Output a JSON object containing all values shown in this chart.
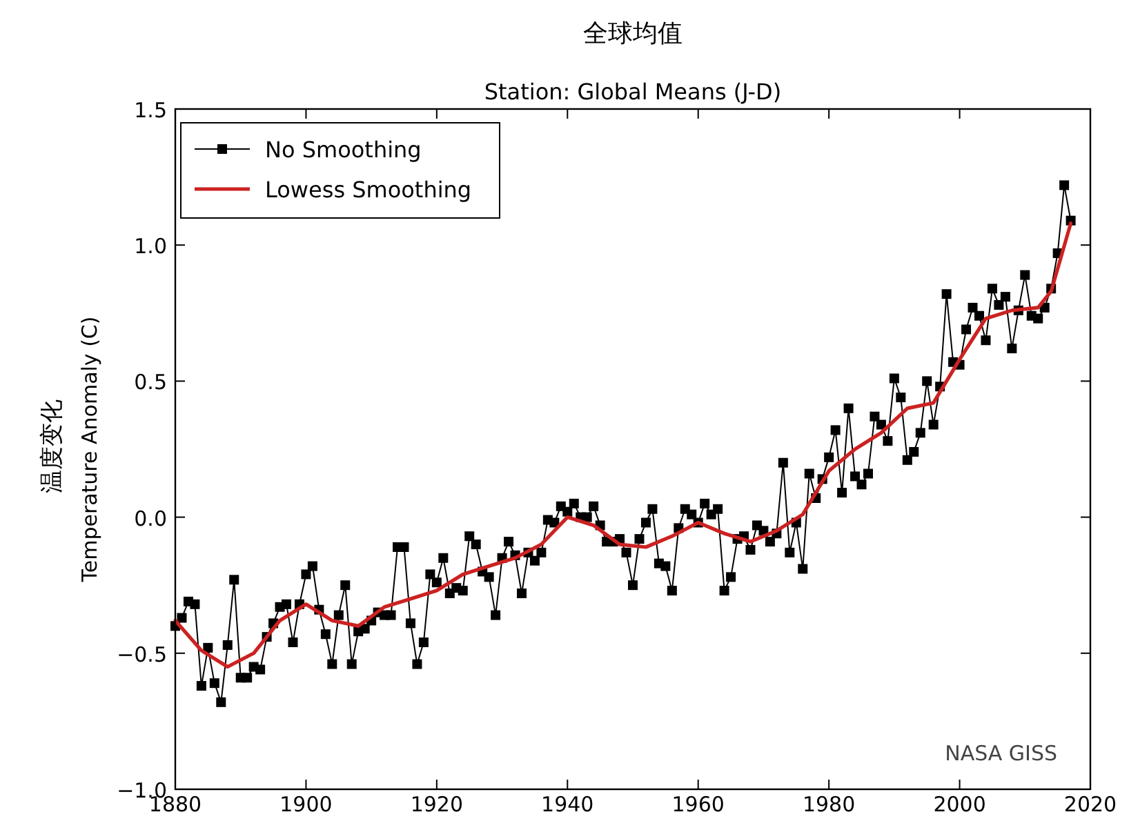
{
  "chart_data": {
    "type": "line",
    "title": "全球均值",
    "subtitle": "Station: Global Means (J-D)",
    "ylabel": "Temperature Anomaly (C)",
    "annotations": [
      "温度变化",
      "NASA GISS"
    ],
    "xlim": [
      1880,
      2020
    ],
    "xticks": [
      1880,
      1900,
      1920,
      1940,
      1960,
      1980,
      2000,
      2020
    ],
    "ylim": [
      -1.0,
      1.5
    ],
    "yticks": [
      {
        "value": -1.0,
        "label": "−1.0"
      },
      {
        "value": -0.5,
        "label": "−0.5"
      },
      {
        "value": 0.0,
        "label": "0.0"
      },
      0.5,
      {
        "value": 1.0,
        "label": "1.0"
      },
      1.5
    ],
    "grid": false,
    "legend": "top left",
    "series": [
      {
        "name": "No Smoothing",
        "color": "#000000",
        "marker": "square",
        "x": [
          1880,
          1881,
          1882,
          1883,
          1884,
          1885,
          1886,
          1887,
          1888,
          1889,
          1890,
          1891,
          1892,
          1893,
          1894,
          1895,
          1896,
          1897,
          1898,
          1899,
          1900,
          1901,
          1902,
          1903,
          1904,
          1905,
          1906,
          1907,
          1908,
          1909,
          1910,
          1911,
          1912,
          1913,
          1914,
          1915,
          1916,
          1917,
          1918,
          1919,
          1920,
          1921,
          1922,
          1923,
          1924,
          1925,
          1926,
          1927,
          1928,
          1929,
          1930,
          1931,
          1932,
          1933,
          1934,
          1935,
          1936,
          1937,
          1938,
          1939,
          1940,
          1941,
          1942,
          1943,
          1944,
          1945,
          1946,
          1947,
          1948,
          1949,
          1950,
          1951,
          1952,
          1953,
          1954,
          1955,
          1956,
          1957,
          1958,
          1959,
          1960,
          1961,
          1962,
          1963,
          1964,
          1965,
          1966,
          1967,
          1968,
          1969,
          1970,
          1971,
          1972,
          1973,
          1974,
          1975,
          1976,
          1977,
          1978,
          1979,
          1980,
          1981,
          1982,
          1983,
          1984,
          1985,
          1986,
          1987,
          1988,
          1989,
          1990,
          1991,
          1992,
          1993,
          1994,
          1995,
          1996,
          1997,
          1998,
          1999,
          2000,
          2001,
          2002,
          2003,
          2004,
          2005,
          2006,
          2007,
          2008,
          2009,
          2010,
          2011,
          2012,
          2013,
          2014,
          2015,
          2016,
          2017
        ],
        "values": [
          -0.4,
          -0.37,
          -0.31,
          -0.32,
          -0.62,
          -0.48,
          -0.61,
          -0.68,
          -0.47,
          -0.23,
          -0.59,
          -0.59,
          -0.55,
          -0.56,
          -0.44,
          -0.39,
          -0.33,
          -0.32,
          -0.46,
          -0.32,
          -0.21,
          -0.18,
          -0.34,
          -0.43,
          -0.54,
          -0.36,
          -0.25,
          -0.54,
          -0.42,
          -0.41,
          -0.38,
          -0.35,
          -0.36,
          -0.36,
          -0.11,
          -0.11,
          -0.39,
          -0.54,
          -0.46,
          -0.21,
          -0.24,
          -0.15,
          -0.28,
          -0.26,
          -0.27,
          -0.07,
          -0.1,
          -0.2,
          -0.22,
          -0.36,
          -0.15,
          -0.09,
          -0.14,
          -0.28,
          -0.13,
          -0.16,
          -0.13,
          -0.01,
          -0.02,
          0.04,
          0.02,
          0.05,
          0.0,
          0.0,
          0.04,
          -0.03,
          -0.09,
          -0.09,
          -0.08,
          -0.13,
          -0.25,
          -0.08,
          -0.02,
          0.03,
          -0.17,
          -0.18,
          -0.27,
          -0.04,
          0.03,
          0.01,
          -0.02,
          0.05,
          0.01,
          0.03,
          -0.27,
          -0.22,
          -0.08,
          -0.07,
          -0.12,
          -0.03,
          -0.05,
          -0.09,
          -0.06,
          0.2,
          -0.13,
          -0.02,
          -0.19,
          0.16,
          0.07,
          0.14,
          0.22,
          0.32,
          0.09,
          0.4,
          0.15,
          0.12,
          0.16,
          0.37,
          0.34,
          0.28,
          0.51,
          0.44,
          0.21,
          0.24,
          0.31,
          0.5,
          0.34,
          0.48,
          0.82,
          0.57,
          0.56,
          0.69,
          0.77,
          0.74,
          0.65,
          0.84,
          0.78,
          0.81,
          0.62,
          0.76,
          0.89,
          0.74,
          0.73,
          0.77,
          0.84,
          0.97,
          1.22,
          1.09
        ]
      },
      {
        "name": "Lowess Smoothing",
        "color": "#cc2222",
        "marker": "none",
        "x": [
          1880,
          1884,
          1888,
          1892,
          1896,
          1900,
          1904,
          1908,
          1912,
          1916,
          1920,
          1924,
          1928,
          1932,
          1936,
          1940,
          1944,
          1948,
          1952,
          1956,
          1960,
          1964,
          1968,
          1972,
          1976,
          1980,
          1984,
          1988,
          1992,
          1996,
          2000,
          2004,
          2008,
          2012,
          2014,
          2017
        ],
        "values": [
          -0.38,
          -0.49,
          -0.55,
          -0.5,
          -0.38,
          -0.32,
          -0.38,
          -0.4,
          -0.33,
          -0.3,
          -0.27,
          -0.21,
          -0.18,
          -0.15,
          -0.1,
          0.0,
          -0.03,
          -0.1,
          -0.11,
          -0.07,
          -0.02,
          -0.06,
          -0.09,
          -0.05,
          0.01,
          0.17,
          0.25,
          0.31,
          0.4,
          0.42,
          0.58,
          0.73,
          0.76,
          0.77,
          0.83,
          1.08
        ]
      }
    ]
  }
}
